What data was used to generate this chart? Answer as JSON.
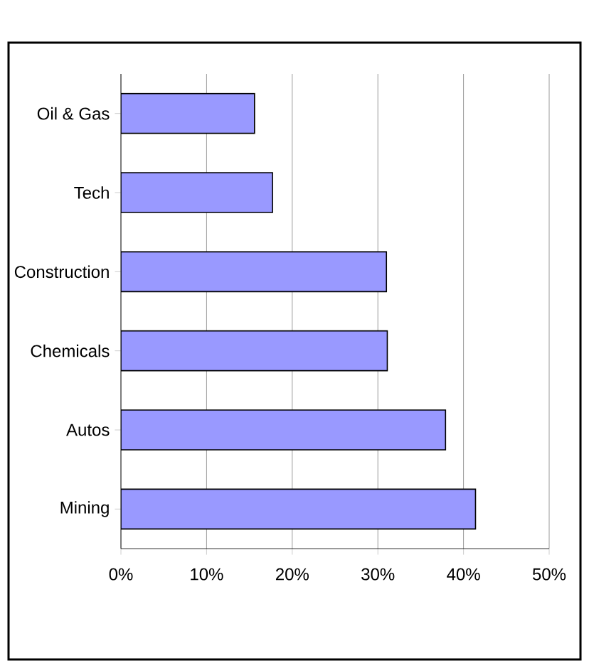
{
  "chart_data": {
    "type": "bar",
    "orientation": "horizontal",
    "categories": [
      "Oil & Gas",
      "Tech",
      "Construction",
      "Chemicals",
      "Autos",
      "Mining"
    ],
    "values": [
      15.6,
      17.7,
      31.0,
      31.1,
      37.9,
      41.4
    ],
    "color": "#9999ff",
    "xlim": [
      0,
      50
    ],
    "xticks": [
      {
        "value": 0,
        "label": "0%"
      },
      {
        "value": 10,
        "label": "10%"
      },
      {
        "value": 20,
        "label": "20%"
      },
      {
        "value": 30,
        "label": "30%"
      },
      {
        "value": 40,
        "label": "40%"
      },
      {
        "value": 50,
        "label": "50%"
      }
    ],
    "grid": "x"
  }
}
